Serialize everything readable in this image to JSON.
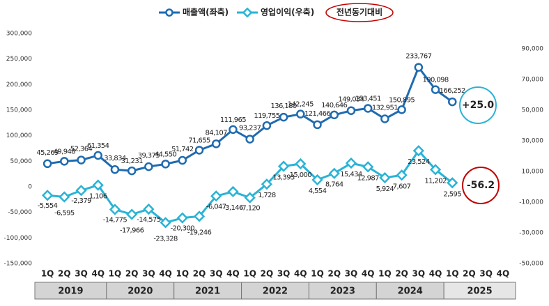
{
  "chart_data": {
    "type": "line",
    "categories": [
      "1Q",
      "2Q",
      "3Q",
      "4Q",
      "1Q",
      "2Q",
      "3Q",
      "4Q",
      "1Q",
      "2Q",
      "3Q",
      "4Q",
      "1Q",
      "2Q",
      "3Q",
      "4Q",
      "1Q",
      "2Q",
      "3Q",
      "4Q",
      "1Q",
      "2Q",
      "3Q",
      "4Q",
      "1Q",
      "2Q",
      "3Q",
      "4Q"
    ],
    "years": [
      "2019",
      "2020",
      "2021",
      "2022",
      "2023",
      "2024",
      "2025"
    ],
    "series": [
      {
        "name": "매출액(좌축)",
        "color": "#1f6bb0",
        "values": [
          45269,
          49948,
          52364,
          61354,
          33834,
          31231,
          39375,
          44550,
          51742,
          71655,
          84107,
          111965,
          93237,
          119755,
          136180,
          142245,
          121466,
          140646,
          149034,
          153451,
          132951,
          150895,
          233767,
          190098,
          166252,
          null,
          null,
          null
        ],
        "value_labels": [
          "45,269",
          "49,948",
          "52,364",
          "61,354",
          "33,834",
          "31,231",
          "39,375",
          "44,550",
          "51,742",
          "71,655",
          "84,107",
          "111,965",
          "93,237",
          "119,755",
          "136,180",
          "142,245",
          "121,466",
          "140,646",
          "149,034",
          "153,451",
          "132,951",
          "150,895",
          "233,767",
          "190,098",
          "166,252",
          null,
          null,
          null
        ]
      },
      {
        "name": "영업이익(우축)",
        "color": "#2ab3d6",
        "axis": "y2",
        "values": [
          -5554,
          -6595,
          -2379,
          1106,
          -14775,
          -17966,
          -14575,
          -23328,
          -20300,
          -19246,
          -6047,
          -3146,
          -7120,
          1728,
          13393,
          15000,
          4554,
          8764,
          15434,
          12987,
          5924,
          7607,
          23524,
          11202,
          2595,
          null,
          null,
          null
        ],
        "value_labels": [
          "-5,554",
          "-6,595",
          "-2,379",
          "1,106",
          "-14,775",
          "-17,966",
          "-14,575",
          "-23,328",
          "-20,300",
          "-19,246",
          "-6,047",
          "-3,146",
          "-7,120",
          "1,728",
          "13,393",
          "15,000",
          "4,554",
          "8,764",
          "15,434",
          "12,987",
          "5,924",
          "7,607",
          "23,524",
          "11,202",
          "2,595",
          null,
          null,
          null
        ]
      }
    ],
    "legend_note": "전년동기대비",
    "annotations": [
      "+25.0",
      "-56.2"
    ],
    "ylim": [
      -150000,
      300000
    ],
    "yticks": [
      {
        "value": -150000,
        "label": "-150,000"
      },
      {
        "value": -100000,
        "label": "-100,000"
      },
      {
        "value": -50000,
        "label": "-50,000"
      },
      0,
      {
        "value": 50000,
        "label": "50,000"
      },
      {
        "value": 100000,
        "label": "100,000"
      },
      {
        "value": 150000,
        "label": "150,000"
      },
      {
        "value": 200000,
        "label": "200,000"
      },
      {
        "value": 250000,
        "label": "250,000"
      },
      {
        "value": 300000,
        "label": "300,000"
      }
    ],
    "y2lim": [
      -50000,
      100000
    ],
    "y2ticks": [
      {
        "value": -50000,
        "label": "-50,000"
      },
      {
        "value": -30000,
        "label": "-30,000"
      },
      {
        "value": -10000,
        "label": "-10,000"
      },
      {
        "value": 10000,
        "label": "10,000"
      },
      {
        "value": 30000,
        "label": "30,000"
      },
      {
        "value": 50000,
        "label": "50,000"
      },
      {
        "value": 70000,
        "label": "70,000"
      },
      {
        "value": 90000,
        "label": "90,000"
      }
    ],
    "grid": false
  }
}
